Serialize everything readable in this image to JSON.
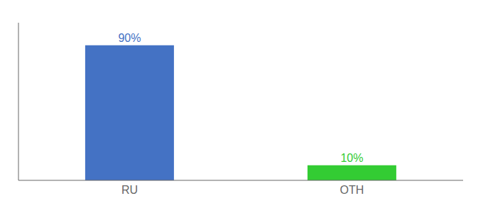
{
  "chart_data": {
    "type": "bar",
    "categories": [
      "RU",
      "OTH"
    ],
    "values": [
      90,
      10
    ],
    "value_labels": [
      "90%",
      "10%"
    ],
    "colors": [
      "#4472c4",
      "#33cc33"
    ],
    "ylim": [
      0,
      105
    ],
    "yticks": [],
    "data_labels": true,
    "tick_labels": "x"
  }
}
